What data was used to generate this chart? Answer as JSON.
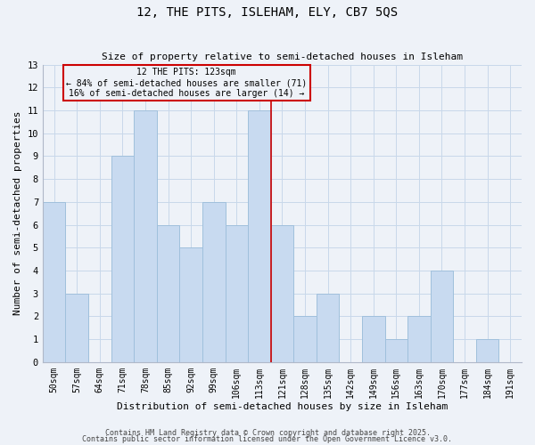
{
  "title": "12, THE PITS, ISLEHAM, ELY, CB7 5QS",
  "subtitle": "Size of property relative to semi-detached houses in Isleham",
  "xlabel": "Distribution of semi-detached houses by size in Isleham",
  "ylabel": "Number of semi-detached properties",
  "bin_labels": [
    "50sqm",
    "57sqm",
    "64sqm",
    "71sqm",
    "78sqm",
    "85sqm",
    "92sqm",
    "99sqm",
    "106sqm",
    "113sqm",
    "121sqm",
    "128sqm",
    "135sqm",
    "142sqm",
    "149sqm",
    "156sqm",
    "163sqm",
    "170sqm",
    "177sqm",
    "184sqm",
    "191sqm"
  ],
  "bar_values": [
    7,
    3,
    0,
    9,
    11,
    6,
    5,
    7,
    6,
    11,
    6,
    2,
    3,
    0,
    2,
    1,
    2,
    4,
    0,
    1,
    0
  ],
  "bar_color": "#c8daf0",
  "bar_edgecolor": "#a0c0dc",
  "grid_color": "#c8d8ea",
  "bg_color": "#eef2f8",
  "vline_x": 9.5,
  "annotation_line1": "12 THE PITS: 123sqm",
  "annotation_line2": "← 84% of semi-detached houses are smaller (71)",
  "annotation_line3": "16% of semi-detached houses are larger (14) →",
  "annotation_box_color": "#cc0000",
  "ylim_max": 13,
  "footnote1": "Contains HM Land Registry data © Crown copyright and database right 2025.",
  "footnote2": "Contains public sector information licensed under the Open Government Licence v3.0."
}
